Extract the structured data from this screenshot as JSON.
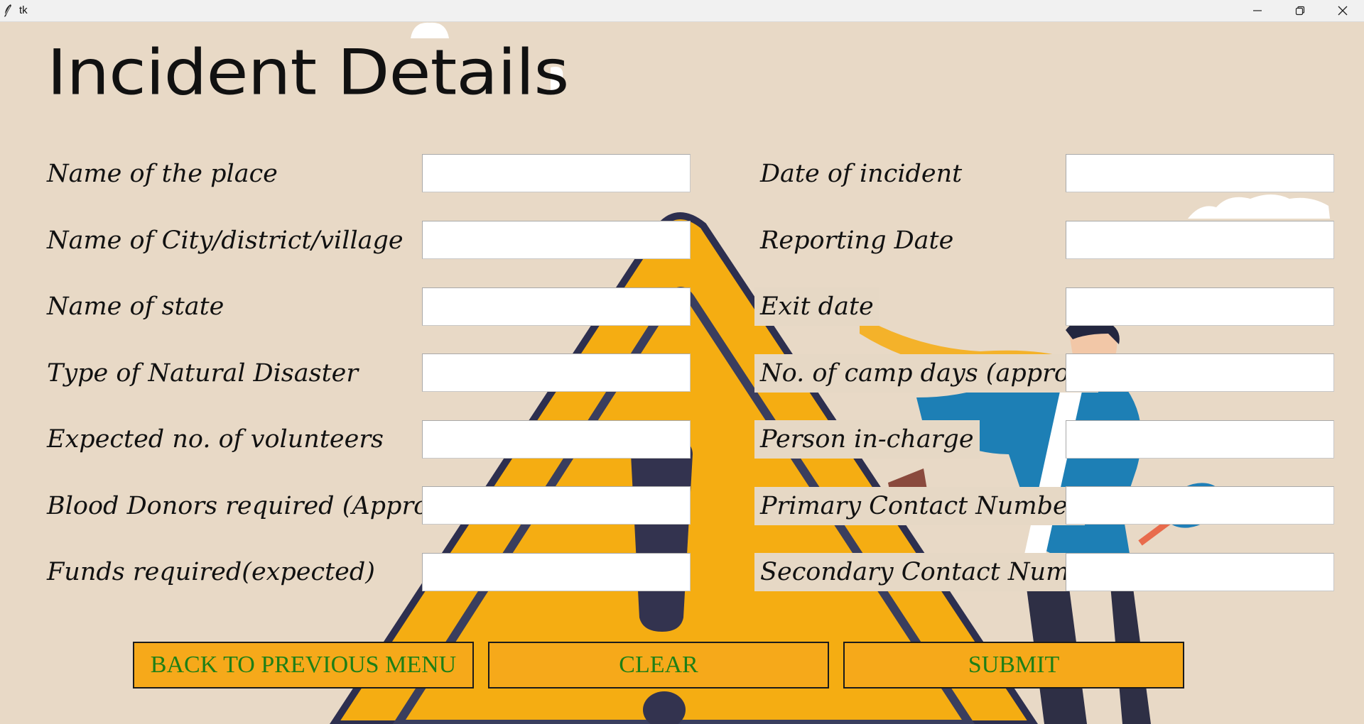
{
  "window": {
    "title": "tk"
  },
  "page": {
    "title": "Incident Details"
  },
  "form": {
    "left_fields": [
      {
        "label": "Name of the place",
        "value": ""
      },
      {
        "label": "Name of City/district/village",
        "value": ""
      },
      {
        "label": "Name of state",
        "value": ""
      },
      {
        "label": "Type of Natural Disaster",
        "value": ""
      },
      {
        "label": "Expected no. of volunteers",
        "value": ""
      },
      {
        "label": "Blood Donors required (Approx)",
        "value": ""
      },
      {
        "label": "Funds required(expected)",
        "value": ""
      }
    ],
    "right_fields": [
      {
        "label": "Date of incident",
        "value": ""
      },
      {
        "label": "Reporting Date",
        "value": ""
      },
      {
        "label": "Exit date",
        "value": ""
      },
      {
        "label": "No. of camp days (approx)",
        "value": ""
      },
      {
        "label": "Person in-charge",
        "value": ""
      },
      {
        "label": "Primary Contact Number",
        "value": ""
      },
      {
        "label": "Secondary Contact Number",
        "value": ""
      }
    ]
  },
  "buttons": {
    "back": "BACK TO PREVIOUS MENU",
    "clear": "CLEAR",
    "submit": "SUBMIT"
  },
  "colors": {
    "background": "#e8d9c6",
    "button_fill": "#f6a91a",
    "button_text": "#1e7f16",
    "warning_yellow": "#f5ad12",
    "warning_dark": "#2d2f4f"
  },
  "icons": {
    "app": "feather-icon",
    "minimize": "minimize-icon",
    "maximize": "restore-icon",
    "close": "close-icon"
  }
}
